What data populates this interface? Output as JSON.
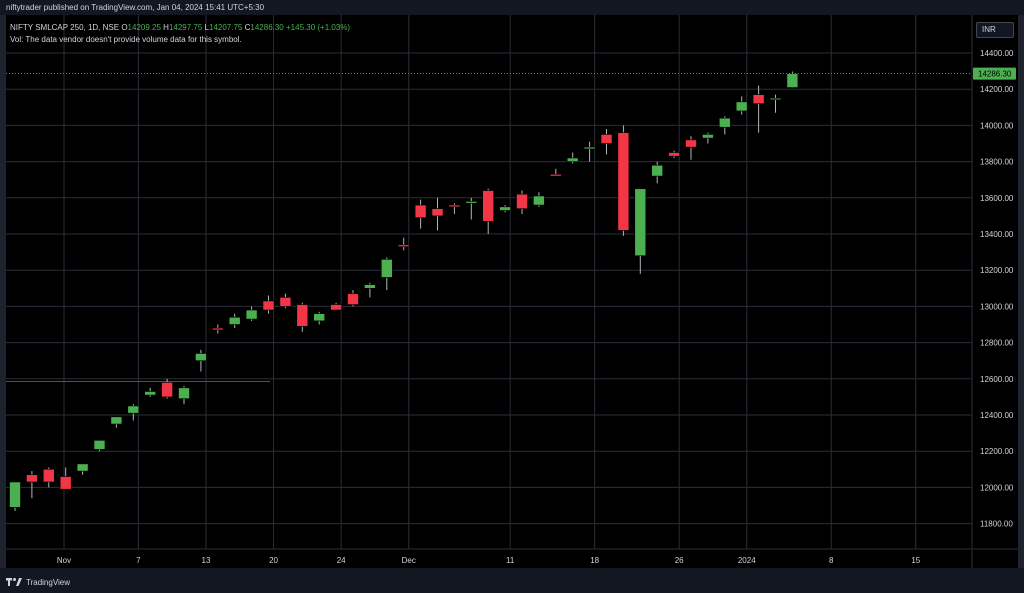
{
  "header": {
    "published_text": "niftytrader published on TradingView.com, Jan 04, 2024 15:41 UTC+5:30"
  },
  "legend": {
    "symbol": "NIFTY SMLCAP 250, 1D, NSE",
    "open_label": "O",
    "open": "14209.25",
    "high_label": "H",
    "high": "14297.75",
    "low_label": "L",
    "low": "14207.75",
    "close_label": "C",
    "close": "14286.30",
    "change": "+145.30 (+1.03%)",
    "vol_note": "Vol: The data vendor doesn't provide volume data for this symbol."
  },
  "currency": "INR",
  "last_price": "14286.30",
  "footer": {
    "logo_text": "TradingView"
  },
  "colors": {
    "up": "#4caf50",
    "down": "#f23645",
    "wick": "#b2b5be",
    "grid": "#2a2e39",
    "hline": "#b22833",
    "background": "#000000"
  },
  "chart_data": {
    "type": "candlestick",
    "title": "",
    "xlabel": "",
    "ylabel": "",
    "y_ticks": [
      "14400.00",
      "14200.00",
      "14000.00",
      "13800.00",
      "13600.00",
      "13400.00",
      "13200.00",
      "13000.00",
      "12800.00",
      "12600.00",
      "12400.00",
      "12200.00",
      "12000.00",
      "11800.00"
    ],
    "ylim": [
      11700,
      14500
    ],
    "x_ticks": [
      "Nov",
      "7",
      "13",
      "20",
      "24",
      "Dec",
      "11",
      "18",
      "26",
      "2024",
      "8",
      "15"
    ],
    "horizontal_line": 12585,
    "grid": true,
    "candles": [
      {
        "o": 11890,
        "h": 12030,
        "l": 11870,
        "c": 12030
      },
      {
        "o": 12070,
        "h": 12090,
        "l": 11940,
        "c": 12030
      },
      {
        "o": 12100,
        "h": 12110,
        "l": 12000,
        "c": 12030
      },
      {
        "o": 12060,
        "h": 12110,
        "l": 11990,
        "c": 11990
      },
      {
        "o": 12090,
        "h": 12130,
        "l": 12070,
        "c": 12130
      },
      {
        "o": 12210,
        "h": 12260,
        "l": 12200,
        "c": 12260
      },
      {
        "o": 12350,
        "h": 12390,
        "l": 12330,
        "c": 12390
      },
      {
        "o": 12410,
        "h": 12460,
        "l": 12370,
        "c": 12450
      },
      {
        "o": 12510,
        "h": 12550,
        "l": 12500,
        "c": 12530
      },
      {
        "o": 12580,
        "h": 12600,
        "l": 12490,
        "c": 12500
      },
      {
        "o": 12490,
        "h": 12560,
        "l": 12460,
        "c": 12550
      },
      {
        "o": 12700,
        "h": 12760,
        "l": 12640,
        "c": 12740
      },
      {
        "o": 12880,
        "h": 12900,
        "l": 12850,
        "c": 12870
      },
      {
        "o": 12900,
        "h": 12960,
        "l": 12880,
        "c": 12940
      },
      {
        "o": 12930,
        "h": 13000,
        "l": 12920,
        "c": 12980
      },
      {
        "o": 13030,
        "h": 13060,
        "l": 12960,
        "c": 12980
      },
      {
        "o": 13050,
        "h": 13070,
        "l": 12990,
        "c": 13000
      },
      {
        "o": 13010,
        "h": 13020,
        "l": 12860,
        "c": 12890
      },
      {
        "o": 12920,
        "h": 12970,
        "l": 12900,
        "c": 12960
      },
      {
        "o": 13010,
        "h": 13020,
        "l": 12980,
        "c": 12980
      },
      {
        "o": 13070,
        "h": 13090,
        "l": 13000,
        "c": 13010
      },
      {
        "o": 13100,
        "h": 13130,
        "l": 13050,
        "c": 13120
      },
      {
        "o": 13160,
        "h": 13270,
        "l": 13090,
        "c": 13260
      },
      {
        "o": 13340,
        "h": 13380,
        "l": 13310,
        "c": 13330
      },
      {
        "o": 13560,
        "h": 13590,
        "l": 13430,
        "c": 13490
      },
      {
        "o": 13540,
        "h": 13600,
        "l": 13420,
        "c": 13500
      },
      {
        "o": 13560,
        "h": 13570,
        "l": 13510,
        "c": 13550
      },
      {
        "o": 13570,
        "h": 13600,
        "l": 13480,
        "c": 13580
      },
      {
        "o": 13640,
        "h": 13650,
        "l": 13400,
        "c": 13470
      },
      {
        "o": 13530,
        "h": 13560,
        "l": 13520,
        "c": 13550
      },
      {
        "o": 13620,
        "h": 13640,
        "l": 13510,
        "c": 13540
      },
      {
        "o": 13560,
        "h": 13630,
        "l": 13550,
        "c": 13610
      },
      {
        "o": 13730,
        "h": 13760,
        "l": 13720,
        "c": 13720
      },
      {
        "o": 13800,
        "h": 13850,
        "l": 13790,
        "c": 13820
      },
      {
        "o": 13870,
        "h": 13910,
        "l": 13800,
        "c": 13880
      },
      {
        "o": 13950,
        "h": 13980,
        "l": 13840,
        "c": 13900
      },
      {
        "o": 13960,
        "h": 14000,
        "l": 13390,
        "c": 13420
      },
      {
        "o": 13280,
        "h": 13650,
        "l": 13180,
        "c": 13650
      },
      {
        "o": 13720,
        "h": 13800,
        "l": 13680,
        "c": 13780
      },
      {
        "o": 13850,
        "h": 13860,
        "l": 13820,
        "c": 13830
      },
      {
        "o": 13920,
        "h": 13940,
        "l": 13810,
        "c": 13880
      },
      {
        "o": 13930,
        "h": 13960,
        "l": 13900,
        "c": 13950
      },
      {
        "o": 13990,
        "h": 14050,
        "l": 13950,
        "c": 14040
      },
      {
        "o": 14080,
        "h": 14160,
        "l": 14060,
        "c": 14130
      },
      {
        "o": 14170,
        "h": 14220,
        "l": 13960,
        "c": 14120
      },
      {
        "o": 14150,
        "h": 14170,
        "l": 14070,
        "c": 14150
      },
      {
        "o": 14209.25,
        "h": 14297.75,
        "l": 14207.75,
        "c": 14286.3
      }
    ]
  }
}
